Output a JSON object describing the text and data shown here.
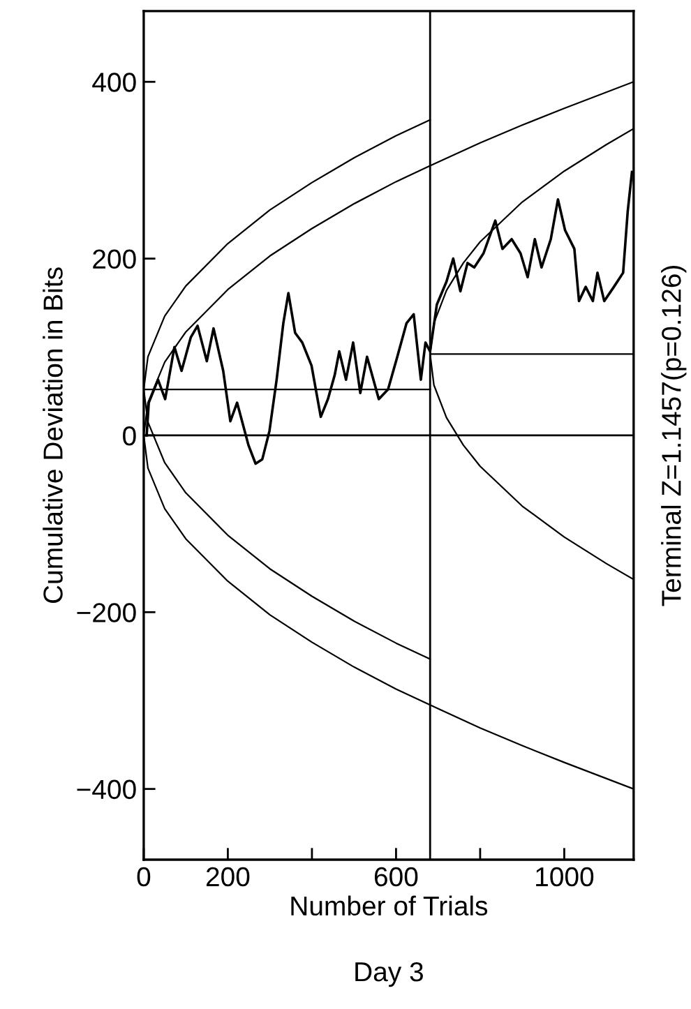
{
  "chart_data": {
    "type": "line",
    "xlabel": "Number of Trials",
    "ylabel": "Cumulative Deviation in Bits",
    "y2label": "Terminal Z=1.1457(p=0.126)",
    "annotations": [
      "Day 3"
    ],
    "xlim": [
      0,
      1165
    ],
    "ylim": [
      -480,
      480
    ],
    "xticks": [
      0,
      200,
      {
        "value": 400,
        "label": null
      },
      600,
      {
        "value": 800,
        "label": null
      },
      1000
    ],
    "yticks": [
      -400,
      -200,
      0,
      200,
      400
    ],
    "marker": "none",
    "line_style": "solid",
    "ref_lines": [
      {
        "axis": "y",
        "value": 0,
        "color": "#000000"
      },
      {
        "axis": "x",
        "value": 681,
        "color": "#000000"
      }
    ],
    "series": [
      {
        "color": "#000000",
        "x": [
          7,
          12,
          34,
          51,
          73,
          90,
          112,
          128,
          150,
          166,
          189,
          206,
          222,
          249,
          266,
          282,
          299,
          316,
          332,
          344,
          360,
          377,
          399,
          421,
          438,
          454,
          465,
          481,
          498,
          515,
          531,
          559,
          581,
          603,
          625,
          642,
          659,
          670,
          681,
          697,
          720,
          736,
          753,
          770,
          786,
          808,
          836,
          853,
          875,
          896,
          913,
          930,
          946,
          968,
          985,
          1002,
          1024,
          1035,
          1051,
          1068,
          1079,
          1095,
          1118,
          1140,
          1151,
          1161
        ],
        "values": [
          0,
          37,
          63,
          41,
          100,
          73,
          111,
          124,
          84,
          121,
          73,
          16,
          37,
          -11,
          -32,
          -27,
          5,
          63,
          127,
          161,
          116,
          105,
          79,
          21,
          41,
          68,
          95,
          63,
          105,
          48,
          89,
          41,
          52,
          89,
          127,
          137,
          63,
          105,
          95,
          148,
          174,
          200,
          163,
          195,
          190,
          206,
          243,
          211,
          222,
          206,
          179,
          222,
          190,
          222,
          267,
          232,
          211,
          152,
          168,
          152,
          184,
          152,
          168,
          184,
          254,
          298
        ]
      },
      {
        "color": "#000000",
        "x": [
          1165,
          1000,
          900,
          800,
          681,
          600,
          500,
          400,
          300,
          200,
          100,
          50,
          10,
          0,
          10,
          50,
          100,
          200,
          300,
          400,
          500,
          600,
          681,
          800,
          900,
          1000,
          1165
        ],
        "values": [
          400,
          370,
          351,
          331,
          305,
          287,
          262,
          234,
          203,
          165,
          117,
          83,
          37,
          0,
          -37,
          -83,
          -117,
          -165,
          -203,
          -234,
          -262,
          -287,
          -305,
          -331,
          -351,
          -370,
          -400
        ]
      },
      {
        "color": "#000000",
        "x": [
          681,
          600,
          500,
          400,
          300,
          200,
          100,
          50,
          10,
          0,
          10,
          50,
          100,
          200,
          300,
          400,
          500,
          600,
          681
        ],
        "values": [
          357,
          339,
          314,
          286,
          255,
          217,
          169,
          135,
          89,
          52,
          15,
          -31,
          -65,
          -113,
          -151,
          -182,
          -210,
          -235,
          -253
        ]
      },
      {
        "color": "#000000",
        "x": [
          1165,
          1100,
          1000,
          900,
          800,
          760,
          720,
          690,
          681,
          690,
          720,
          760,
          800,
          900,
          1000,
          1100,
          1165
        ],
        "values": [
          347,
          329,
          299,
          264,
          219,
          195,
          164,
          127,
          92,
          57,
          20,
          -11,
          -35,
          -80,
          -115,
          -145,
          -163
        ]
      },
      {
        "color": "#000000",
        "x": [
          0,
          681
        ],
        "values": [
          52,
          52
        ]
      },
      {
        "color": "#000000",
        "x": [
          681,
          1165
        ],
        "values": [
          92,
          92
        ]
      }
    ]
  }
}
